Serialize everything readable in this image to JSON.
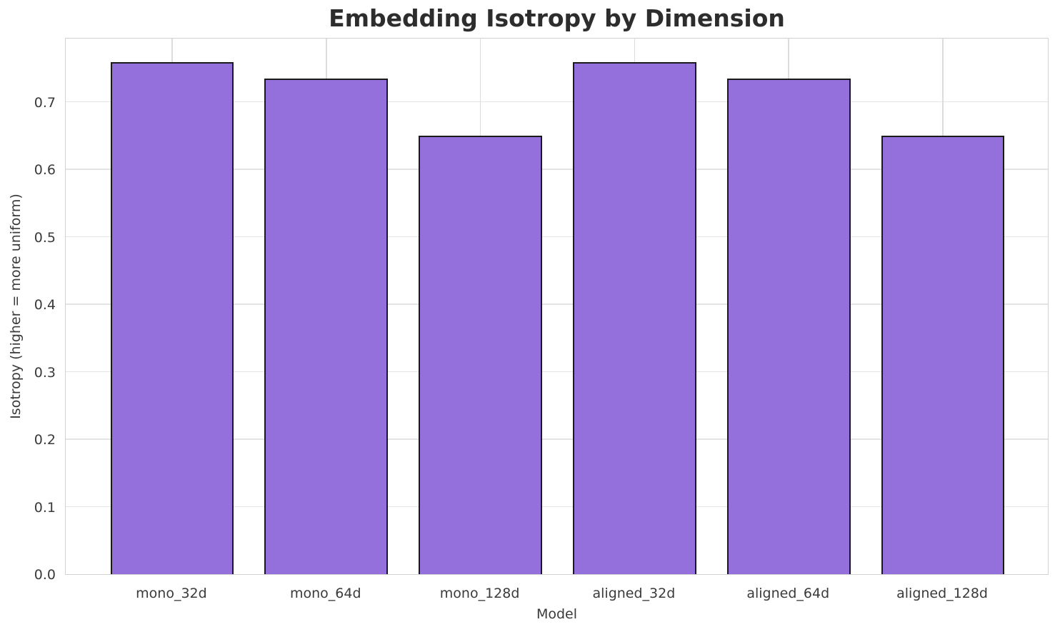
{
  "figure": {
    "background": "#ffffff"
  },
  "chart_data": {
    "type": "bar",
    "title": "Embedding Isotropy by Dimension",
    "xlabel": "Model",
    "ylabel": "Isotropy (higher = more uniform)",
    "categories": [
      "mono_32d",
      "mono_64d",
      "mono_128d",
      "aligned_32d",
      "aligned_64d",
      "aligned_128d"
    ],
    "values": [
      0.759,
      0.735,
      0.65,
      0.759,
      0.735,
      0.65
    ],
    "ytick_labels": [
      "0.0",
      "0.1",
      "0.2",
      "0.3",
      "0.4",
      "0.5",
      "0.6",
      "0.7"
    ],
    "ylim": [
      0,
      0.796
    ],
    "grid": true,
    "legend_position": "none",
    "bar_color": "#9370DB",
    "bar_edge_color": "#1a1a1a",
    "grid_color": "#e0e0e0",
    "title_color": "#2d2d2d",
    "tick_color": "#3a3a3a"
  }
}
